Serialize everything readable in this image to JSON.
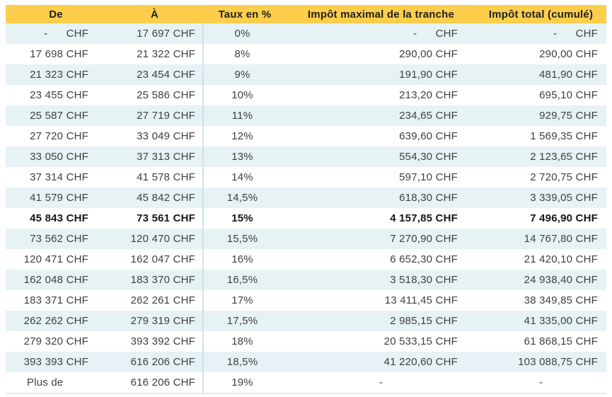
{
  "table": {
    "columns": [
      "De",
      "À",
      "Taux en %",
      "Impôt maximal de la tranche",
      "Impôt total (cumulé)"
    ],
    "rows": [
      {
        "cells": [
          "-      CHF",
          "17 697 CHF",
          "0%",
          "-      CHF",
          "-      CHF"
        ],
        "bold": false
      },
      {
        "cells": [
          "17 698 CHF",
          "21 322 CHF",
          "8%",
          "290,00 CHF",
          "290,00 CHF"
        ],
        "bold": false
      },
      {
        "cells": [
          "21 323 CHF",
          "23 454 CHF",
          "9%",
          "191,90 CHF",
          "481,90 CHF"
        ],
        "bold": false
      },
      {
        "cells": [
          "23 455 CHF",
          "25 586 CHF",
          "10%",
          "213,20 CHF",
          "695,10 CHF"
        ],
        "bold": false
      },
      {
        "cells": [
          "25 587 CHF",
          "27 719 CHF",
          "11%",
          "234,65 CHF",
          "929,75 CHF"
        ],
        "bold": false
      },
      {
        "cells": [
          "27 720 CHF",
          "33 049 CHF",
          "12%",
          "639,60 CHF",
          "1 569,35 CHF"
        ],
        "bold": false
      },
      {
        "cells": [
          "33 050 CHF",
          "37 313 CHF",
          "13%",
          "554,30 CHF",
          "2 123,65 CHF"
        ],
        "bold": false
      },
      {
        "cells": [
          "37 314 CHF",
          "41 578 CHF",
          "14%",
          "597,10 CHF",
          "2 720,75 CHF"
        ],
        "bold": false
      },
      {
        "cells": [
          "41 579 CHF",
          "45 842 CHF",
          "14,5%",
          "618,30 CHF",
          "3 339,05 CHF"
        ],
        "bold": false
      },
      {
        "cells": [
          "45 843 CHF",
          "73 561 CHF",
          "15%",
          "4 157,85 CHF",
          "7 496,90 CHF"
        ],
        "bold": true
      },
      {
        "cells": [
          "73 562 CHF",
          "120 470 CHF",
          "15,5%",
          "7 270,90 CHF",
          "14 767,80 CHF"
        ],
        "bold": false
      },
      {
        "cells": [
          "120 471 CHF",
          "162 047 CHF",
          "16%",
          "6 652,30 CHF",
          "21 420,10 CHF"
        ],
        "bold": false
      },
      {
        "cells": [
          "162 048 CHF",
          "183 370 CHF",
          "16,5%",
          "3 518,30 CHF",
          "24 938,40 CHF"
        ],
        "bold": false
      },
      {
        "cells": [
          "183 371 CHF",
          "262 261 CHF",
          "17%",
          "13 411,45 CHF",
          "38 349,85 CHF"
        ],
        "bold": false
      },
      {
        "cells": [
          "262 262 CHF",
          "279 319 CHF",
          "17,5%",
          "2 985,15 CHF",
          "41 335,00 CHF"
        ],
        "bold": false
      },
      {
        "cells": [
          "279 320 CHF",
          "393 392 CHF",
          "18%",
          "20 533,15 CHF",
          "61 868,15 CHF"
        ],
        "bold": false
      },
      {
        "cells": [
          "393 393 CHF",
          "616 206 CHF",
          "18,5%",
          "41 220,60 CHF",
          "103 088,75 CHF"
        ],
        "bold": false
      },
      {
        "cells": [
          "Plus de",
          "616 206 CHF",
          "19%",
          "-",
          "-"
        ],
        "bold": false,
        "open_ended": true
      }
    ]
  },
  "colors": {
    "header_bg": "#fdce4c",
    "stripe": "#e6f2f4",
    "divider": "#c9e5ec",
    "text": "#3f3f3f"
  }
}
